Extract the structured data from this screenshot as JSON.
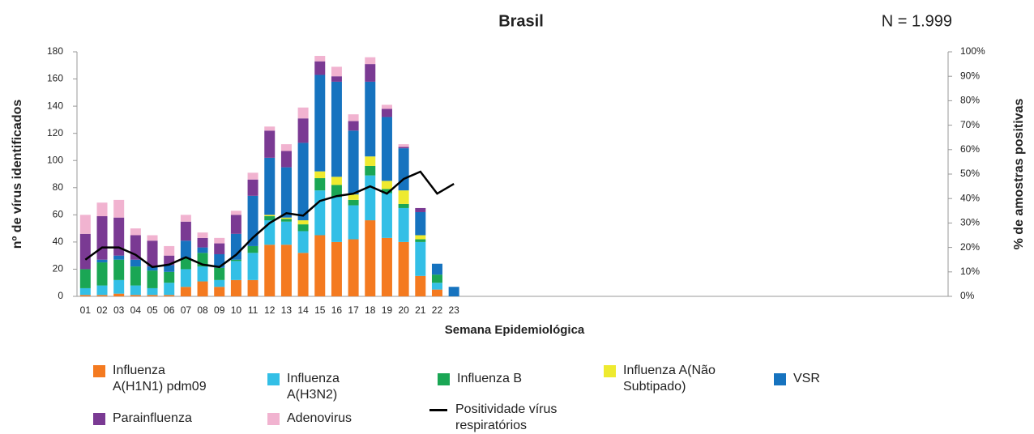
{
  "chart_data": {
    "type": "bar",
    "stacked": true,
    "title": "Brasil",
    "annotation": "N = 1.999",
    "x_label": "Semana Epidemiológica",
    "y_label": "nº de vírus identificados",
    "y2_label": "% de amostras positivas",
    "categories": [
      "01",
      "02",
      "03",
      "04",
      "05",
      "06",
      "07",
      "08",
      "09",
      "10",
      "11",
      "12",
      "13",
      "14",
      "15",
      "16",
      "17",
      "18",
      "19",
      "20",
      "21",
      "22",
      "23",
      null,
      null,
      null,
      null,
      null,
      null,
      null,
      null,
      null,
      null,
      null,
      null,
      null,
      null,
      null,
      null,
      null,
      null,
      null,
      null,
      null,
      null,
      null,
      null,
      null,
      null,
      null,
      null,
      null
    ],
    "ylim": [
      0,
      180
    ],
    "yticks": [
      0,
      20,
      40,
      60,
      80,
      100,
      120,
      140,
      160,
      180
    ],
    "y2lim": [
      0,
      100
    ],
    "y2ticks": [
      {
        "value": 0,
        "label": "0%"
      },
      {
        "value": 10,
        "label": "10%"
      },
      {
        "value": 20,
        "label": "20%"
      },
      {
        "value": 30,
        "label": "30%"
      },
      {
        "value": 40,
        "label": "40%"
      },
      {
        "value": 50,
        "label": "50%"
      },
      {
        "value": 60,
        "label": "60%"
      },
      {
        "value": 70,
        "label": "70%"
      },
      {
        "value": 80,
        "label": "80%"
      },
      {
        "value": 90,
        "label": "90%"
      },
      {
        "value": 100,
        "label": "100%"
      }
    ],
    "grid": false,
    "series": [
      {
        "name": "Influenza A(H1N1) pdm09",
        "color": "#f47a20",
        "values": [
          1,
          1,
          2,
          1,
          1,
          1,
          7,
          11,
          7,
          12,
          12,
          38,
          38,
          32,
          45,
          40,
          42,
          56,
          43,
          40,
          15,
          5,
          0,
          null,
          null,
          null,
          null,
          null,
          null,
          null,
          null,
          null,
          null,
          null,
          null,
          null,
          null,
          null,
          null,
          null,
          null,
          null,
          null,
          null,
          null,
          null,
          null,
          null,
          null,
          null,
          null,
          null
        ]
      },
      {
        "name": "Influenza A(H3N2)",
        "color": "#33bfe6",
        "values": [
          5,
          7,
          10,
          7,
          5,
          9,
          13,
          11,
          5,
          14,
          20,
          18,
          17,
          16,
          33,
          33,
          25,
          33,
          33,
          25,
          25,
          5,
          0,
          null,
          null,
          null,
          null,
          null,
          null,
          null,
          null,
          null,
          null,
          null,
          null,
          null,
          null,
          null,
          null,
          null,
          null,
          null,
          null,
          null,
          null,
          null,
          null,
          null,
          null,
          null,
          null,
          null
        ]
      },
      {
        "name": "Influenza B",
        "color": "#1aa654",
        "values": [
          14,
          17,
          15,
          14,
          13,
          8,
          8,
          10,
          9,
          1,
          5,
          3,
          2,
          5,
          9,
          9,
          4,
          7,
          3,
          3,
          2,
          6,
          0,
          null,
          null,
          null,
          null,
          null,
          null,
          null,
          null,
          null,
          null,
          null,
          null,
          null,
          null,
          null,
          null,
          null,
          null,
          null,
          null,
          null,
          null,
          null,
          null,
          null,
          null,
          null,
          null,
          null
        ]
      },
      {
        "name": "Influenza A(Não Subtipado)",
        "color": "#eeea2f",
        "values": [
          0,
          0,
          0,
          0,
          0,
          0,
          0,
          0,
          0,
          0,
          0,
          1,
          1,
          3,
          5,
          6,
          4,
          7,
          6,
          10,
          3,
          0,
          0,
          null,
          null,
          null,
          null,
          null,
          null,
          null,
          null,
          null,
          null,
          null,
          null,
          null,
          null,
          null,
          null,
          null,
          null,
          null,
          null,
          null,
          null,
          null,
          null,
          null,
          null,
          null,
          null,
          null
        ]
      },
      {
        "name": "VSR",
        "color": "#1673bf",
        "values": [
          0,
          2,
          3,
          5,
          3,
          5,
          13,
          4,
          10,
          19,
          37,
          42,
          37,
          57,
          71,
          70,
          47,
          55,
          47,
          31,
          17,
          8,
          7,
          null,
          null,
          null,
          null,
          null,
          null,
          null,
          null,
          null,
          null,
          null,
          null,
          null,
          null,
          null,
          null,
          null,
          null,
          null,
          null,
          null,
          null,
          null,
          null,
          null,
          null,
          null,
          null,
          null
        ]
      },
      {
        "name": "Parainfluenza",
        "color": "#7a3a93",
        "values": [
          26,
          32,
          28,
          18,
          19,
          7,
          14,
          7,
          8,
          14,
          12,
          20,
          12,
          18,
          10,
          4,
          7,
          13,
          6,
          1,
          3,
          0,
          0,
          null,
          null,
          null,
          null,
          null,
          null,
          null,
          null,
          null,
          null,
          null,
          null,
          null,
          null,
          null,
          null,
          null,
          null,
          null,
          null,
          null,
          null,
          null,
          null,
          null,
          null,
          null,
          null,
          null
        ]
      },
      {
        "name": "Adenovirus",
        "color": "#f1b3d0",
        "values": [
          14,
          10,
          13,
          5,
          4,
          7,
          5,
          4,
          4,
          3,
          5,
          3,
          5,
          8,
          4,
          7,
          5,
          5,
          3,
          2,
          0,
          0,
          0,
          null,
          null,
          null,
          null,
          null,
          null,
          null,
          null,
          null,
          null,
          null,
          null,
          null,
          null,
          null,
          null,
          null,
          null,
          null,
          null,
          null,
          null,
          null,
          null,
          null,
          null,
          null,
          null,
          null
        ]
      },
      {
        "name": "Positividade vírus respiratórios",
        "type": "line",
        "axis": "y2",
        "color": "#000000",
        "values": [
          15,
          20,
          20,
          17,
          12,
          13,
          16,
          13,
          12,
          17,
          24,
          30,
          34,
          33,
          39,
          41,
          42,
          45,
          42,
          48,
          51,
          42,
          46,
          null,
          null,
          null,
          null,
          null,
          null,
          null,
          null,
          null,
          null,
          null,
          null,
          null,
          null,
          null,
          null,
          null,
          null,
          null,
          null,
          null,
          null,
          null,
          null,
          null,
          null,
          null,
          null,
          null
        ]
      }
    ]
  }
}
